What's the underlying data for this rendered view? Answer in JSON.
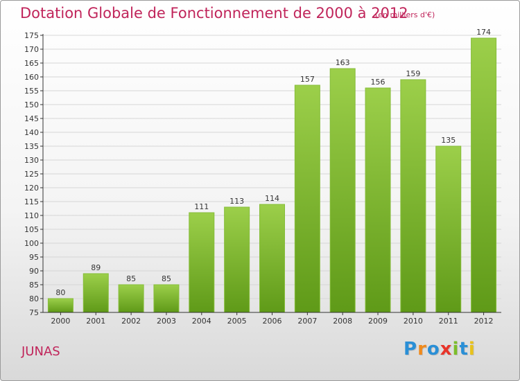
{
  "header": {
    "title": "Dotation Globale de Fonctionnement de 2000 à 2012",
    "subtitle": "(en milliers d'€)"
  },
  "footer": {
    "commune": "JUNAS",
    "logo_text": "Proxiti",
    "logo_letters": [
      {
        "char": "P",
        "color": "#2a8fd6"
      },
      {
        "char": "r",
        "color": "#f08a1c"
      },
      {
        "char": "o",
        "color": "#2a8fd6"
      },
      {
        "char": "x",
        "color": "#e8342a"
      },
      {
        "char": "i",
        "color": "#7cbd2a"
      },
      {
        "char": "t",
        "color": "#2a8fd6"
      },
      {
        "char": "i",
        "color": "#e8c21c"
      }
    ]
  },
  "colors": {
    "title": "#c0245a",
    "bar_light": "#9ccf4a",
    "bar_dark": "#5f9a18",
    "grid": "#d6d6d6",
    "axis": "#333333"
  },
  "chart_data": {
    "type": "bar",
    "categories": [
      "2000",
      "2001",
      "2002",
      "2003",
      "2004",
      "2005",
      "2006",
      "2007",
      "2008",
      "2009",
      "2010",
      "2011",
      "2012"
    ],
    "values": [
      80,
      89,
      85,
      85,
      111,
      113,
      114,
      157,
      163,
      156,
      159,
      135,
      174
    ],
    "ylim": [
      75,
      175
    ],
    "ytick_step": 5,
    "grid": true,
    "xlabel": "",
    "ylabel": ""
  }
}
